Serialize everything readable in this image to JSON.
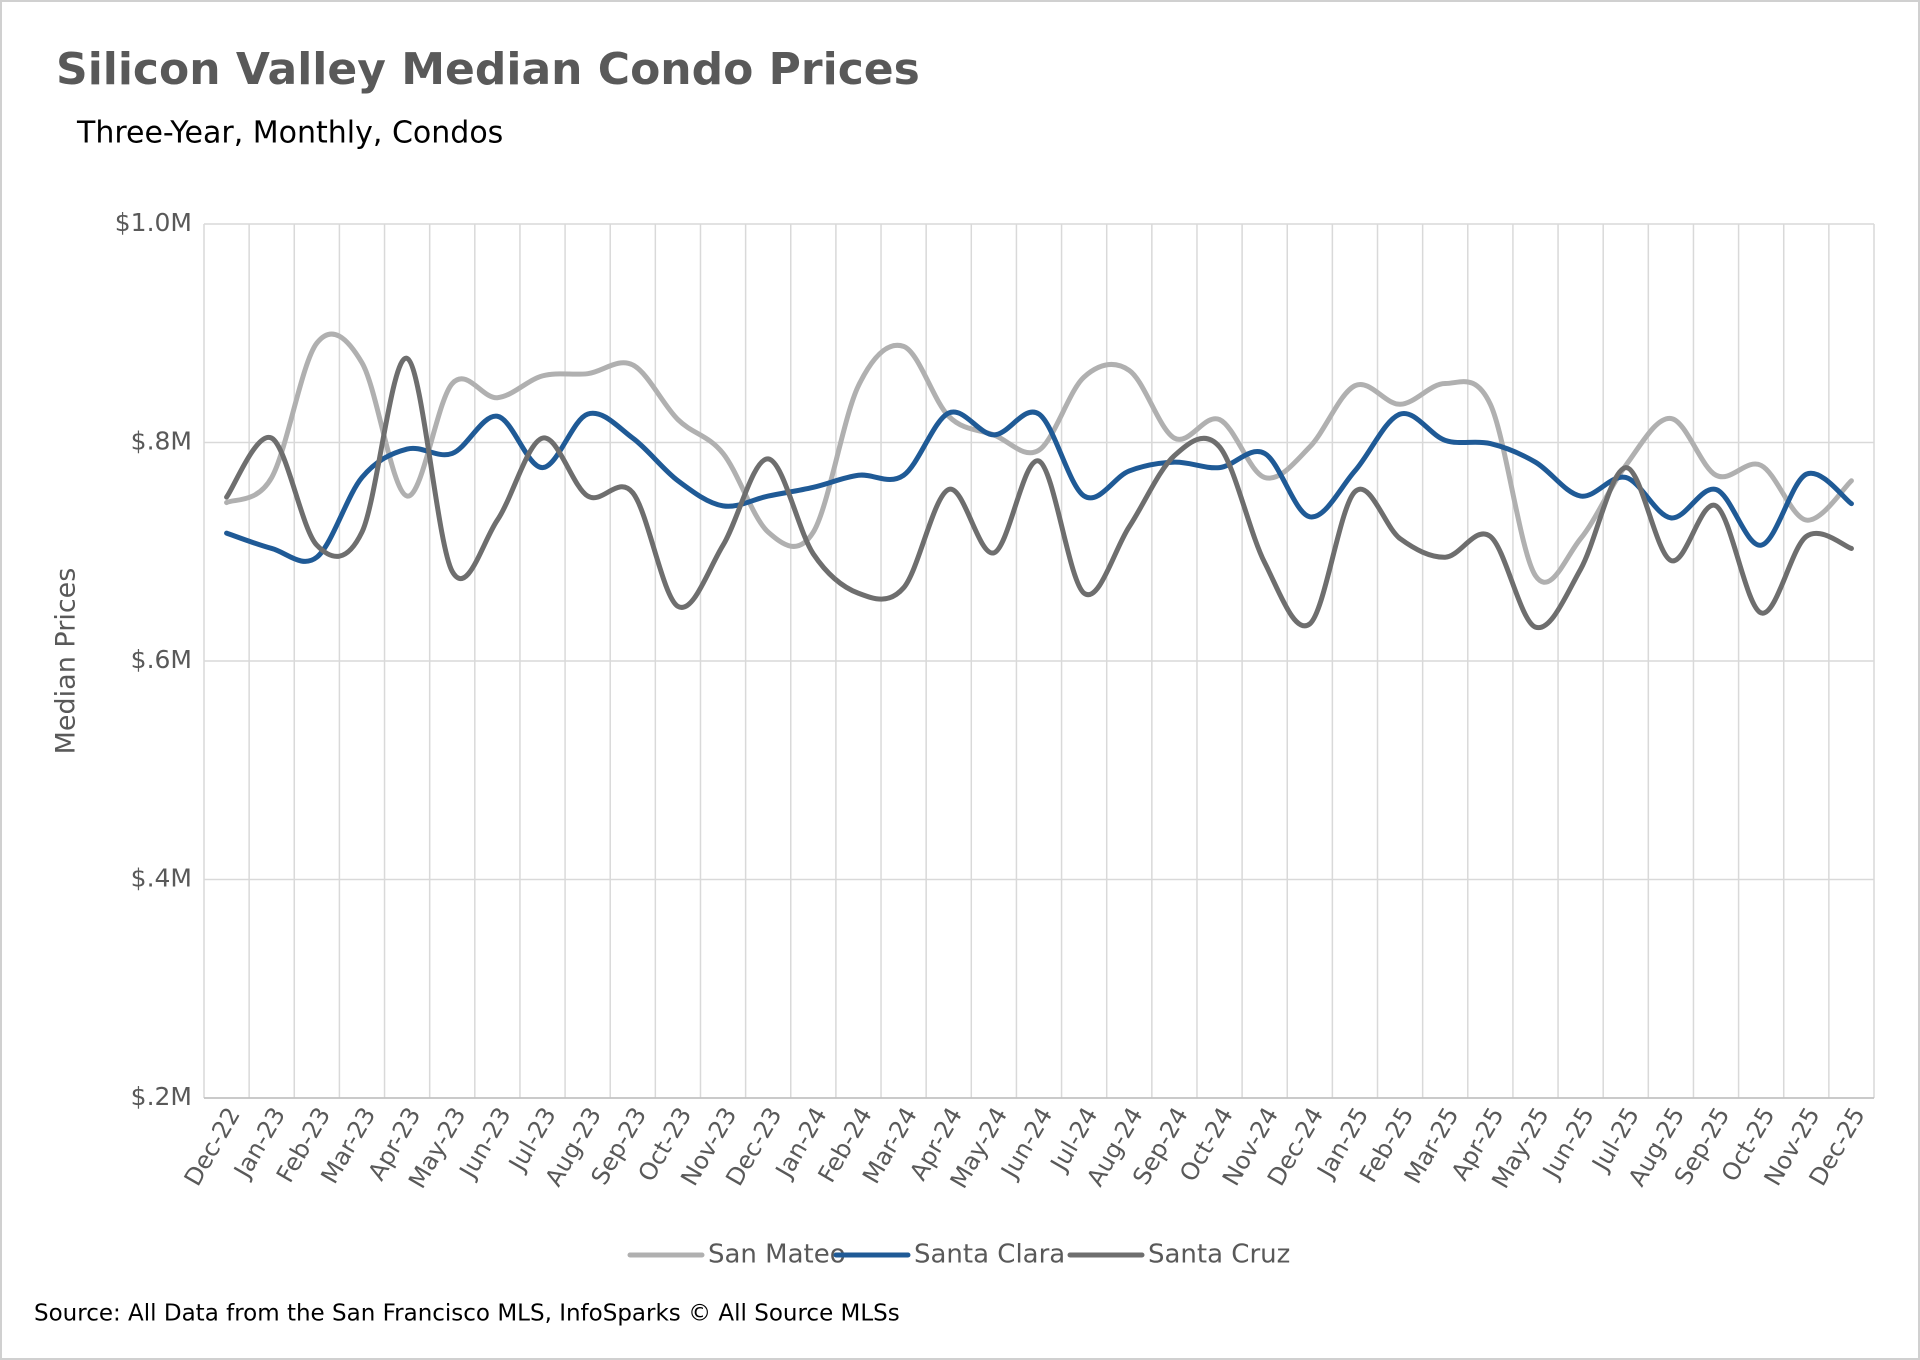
{
  "chart_data": {
    "type": "line",
    "title": "Silicon Valley Median Condo Prices",
    "subtitle": "Three-Year, Monthly, Condos",
    "y_label": "Median Prices",
    "source": "Source: All Data from the San Francisco MLS, InfoSparks © All Source MLSs",
    "categories": [
      "Dec-22",
      "Jan-23",
      "Feb-23",
      "Mar-23",
      "Apr-23",
      "May-23",
      "Jun-23",
      "Jul-23",
      "Aug-23",
      "Sep-23",
      "Oct-23",
      "Nov-23",
      "Dec-23",
      "Jan-24",
      "Feb-24",
      "Mar-24",
      "Apr-24",
      "May-24",
      "Jun-24",
      "Jul-24",
      "Aug-24",
      "Sep-24",
      "Oct-24",
      "Nov-24",
      "Dec-24",
      "Jan-25",
      "Feb-25",
      "Mar-25",
      "Apr-25",
      "May-25",
      "Jun-25",
      "Jul-25",
      "Aug-25",
      "Sep-25",
      "Oct-25",
      "Nov-25",
      "Dec-25"
    ],
    "series": [
      {
        "name": "San Mateo",
        "color": "#b0b0b0",
        "values": [
          745000,
          768000,
          891000,
          873000,
          751000,
          854000,
          841000,
          861000,
          863000,
          871000,
          821000,
          790000,
          718000,
          718000,
          852000,
          888000,
          824000,
          807000,
          793000,
          860000,
          866000,
          804000,
          821000,
          768000,
          796000,
          852000,
          835000,
          854000,
          835000,
          678000,
          712000,
          779000,
          822000,
          770000,
          779000,
          729000,
          765000
        ]
      },
      {
        "name": "Santa Clara",
        "color": "#1f5a96",
        "values": [
          717000,
          703000,
          695000,
          768000,
          794000,
          790000,
          824000,
          777000,
          826000,
          804000,
          765000,
          742000,
          751000,
          759000,
          770000,
          770000,
          827000,
          807000,
          826000,
          751000,
          774000,
          782000,
          777000,
          790000,
          732000,
          774000,
          826000,
          802000,
          799000,
          782000,
          751000,
          768000,
          731000,
          757000,
          706000,
          771000,
          744000
        ]
      },
      {
        "name": "Santa Cruz",
        "color": "#6e6e6e",
        "values": [
          750000,
          804000,
          706000,
          718000,
          877000,
          682000,
          729000,
          804000,
          751000,
          754000,
          650000,
          706000,
          785000,
          698000,
          662000,
          667000,
          757000,
          699000,
          783000,
          662000,
          723000,
          788000,
          796000,
          690000,
          634000,
          755000,
          712000,
          695000,
          714000,
          631000,
          684000,
          777000,
          692000,
          742000,
          644000,
          714000,
          703000
        ]
      }
    ],
    "ylim": [
      200000,
      1000000
    ],
    "yticks": [
      {
        "value": 200000,
        "label": "$.2M"
      },
      {
        "value": 400000,
        "label": "$.4M"
      },
      {
        "value": 600000,
        "label": "$.6M"
      },
      {
        "value": 800000,
        "label": "$.8M"
      },
      {
        "value": 1000000,
        "label": "$1.0M"
      }
    ],
    "grid": true
  }
}
